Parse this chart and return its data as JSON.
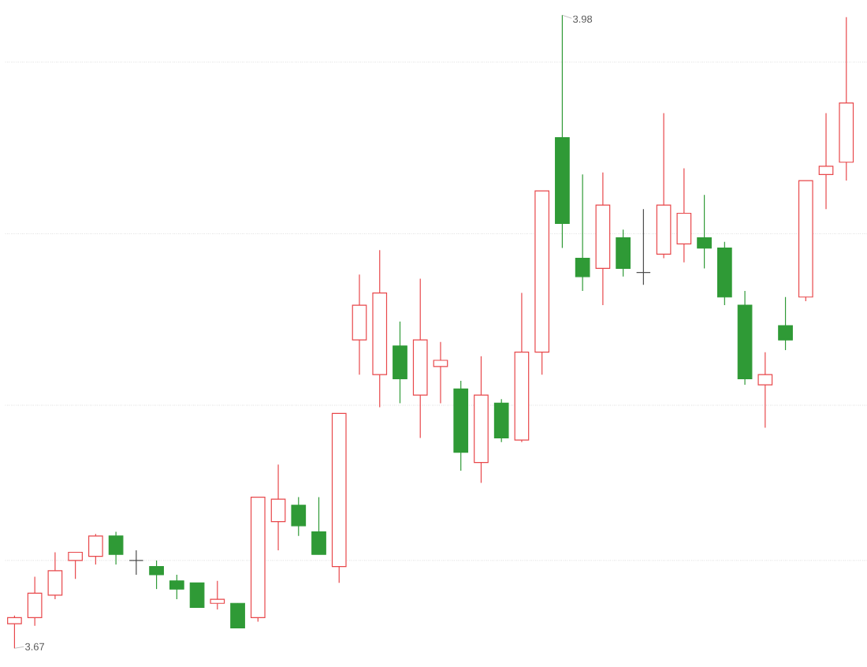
{
  "chart_data": {
    "type": "candlestick",
    "categories": [
      null,
      null,
      null,
      null,
      null,
      null,
      null,
      null,
      null,
      null,
      null,
      null,
      null,
      null,
      null,
      null,
      null,
      null,
      null,
      null,
      null,
      null,
      null,
      null,
      null,
      null,
      null,
      null,
      null,
      null,
      null,
      null,
      null,
      null,
      null,
      null,
      null,
      null,
      null,
      null,
      null,
      null
    ],
    "ohlc": [
      [
        3.682,
        3.686,
        3.67,
        3.685
      ],
      [
        3.685,
        3.705,
        3.681,
        3.697
      ],
      [
        3.696,
        3.717,
        3.694,
        3.708
      ],
      [
        3.713,
        3.717,
        3.704,
        3.717
      ],
      [
        3.715,
        3.726,
        3.711,
        3.725
      ],
      [
        3.725,
        3.727,
        3.711,
        3.716
      ],
      [
        3.713,
        3.718,
        3.706,
        3.713
      ],
      [
        3.71,
        3.713,
        3.699,
        3.706
      ],
      [
        3.703,
        3.706,
        3.694,
        3.699
      ],
      [
        3.702,
        3.702,
        3.69,
        3.69
      ],
      [
        3.692,
        3.703,
        3.689,
        3.694
      ],
      [
        3.692,
        3.692,
        3.68,
        3.68
      ],
      [
        3.685,
        3.744,
        3.683,
        3.744
      ],
      [
        3.732,
        3.76,
        3.718,
        3.743
      ],
      [
        3.74,
        3.744,
        3.725,
        3.73
      ],
      [
        3.727,
        3.744,
        3.716,
        3.716
      ],
      [
        3.71,
        3.785,
        3.702,
        3.785
      ],
      [
        3.821,
        3.853,
        3.804,
        3.838
      ],
      [
        3.804,
        3.865,
        3.788,
        3.844
      ],
      [
        3.818,
        3.83,
        3.79,
        3.802
      ],
      [
        3.794,
        3.851,
        3.773,
        3.821
      ],
      [
        3.808,
        3.82,
        3.79,
        3.811
      ],
      [
        3.797,
        3.801,
        3.757,
        3.766
      ],
      [
        3.761,
        3.813,
        3.751,
        3.794
      ],
      [
        3.79,
        3.792,
        3.771,
        3.773
      ],
      [
        3.772,
        3.844,
        3.771,
        3.815
      ],
      [
        3.815,
        3.894,
        3.804,
        3.894
      ],
      [
        3.92,
        3.98,
        3.866,
        3.878
      ],
      [
        3.861,
        3.902,
        3.845,
        3.852
      ],
      [
        3.856,
        3.903,
        3.838,
        3.887
      ],
      [
        3.871,
        3.875,
        3.852,
        3.856
      ],
      [
        3.854,
        3.885,
        3.848,
        3.854
      ],
      [
        3.863,
        3.932,
        3.861,
        3.887
      ],
      [
        3.868,
        3.905,
        3.859,
        3.883
      ],
      [
        3.871,
        3.892,
        3.856,
        3.866
      ],
      [
        3.866,
        3.869,
        3.838,
        3.842
      ],
      [
        3.838,
        3.845,
        3.799,
        3.802
      ],
      [
        3.799,
        3.815,
        3.778,
        3.804
      ],
      [
        3.828,
        3.842,
        3.816,
        3.821
      ],
      [
        3.842,
        3.899,
        3.84,
        3.899
      ],
      [
        3.902,
        3.932,
        3.885,
        3.906
      ],
      [
        3.908,
        3.979,
        3.899,
        3.937
      ]
    ],
    "colors": [
      "#e8474a",
      "#e8474a",
      "#e8474a",
      "#e8474a",
      "#e8474a",
      "#2f9a36",
      "#4a4a4a",
      "#2f9a36",
      "#2f9a36",
      "#2f9a36",
      "#e8474a",
      "#2f9a36",
      "#e8474a",
      "#e8474a",
      "#2f9a36",
      "#2f9a36",
      "#e8474a",
      "#e8474a",
      "#e8474a",
      "#2f9a36",
      "#e8474a",
      "#e8474a",
      "#2f9a36",
      "#e8474a",
      "#2f9a36",
      "#e8474a",
      "#e8474a",
      "#2f9a36",
      "#2f9a36",
      "#e8474a",
      "#2f9a36",
      "#4a4a4a",
      "#e8474a",
      "#e8474a",
      "#2f9a36",
      "#2f9a36",
      "#2f9a36",
      "#e8474a",
      "#2f9a36",
      "#e8474a",
      "#e8474a",
      "#e8474a"
    ],
    "yticks": [
      {
        "value": 3.957,
        "label": null
      },
      {
        "value": 3.873,
        "label": null
      },
      {
        "value": 3.789,
        "label": null
      },
      {
        "value": 3.713,
        "label": null
      }
    ],
    "grid": "y",
    "annotations": [
      "3.98",
      "3.67"
    ]
  }
}
